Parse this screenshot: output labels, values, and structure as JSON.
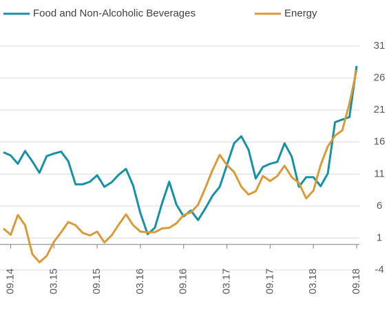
{
  "chart_data": {
    "type": "line",
    "categories": [
      null,
      "09.14",
      null,
      null,
      null,
      null,
      null,
      "03.15",
      null,
      null,
      null,
      null,
      null,
      "09.15",
      null,
      null,
      null,
      null,
      null,
      "03.16",
      null,
      null,
      null,
      null,
      null,
      "09.16",
      null,
      null,
      null,
      null,
      null,
      "03.17",
      null,
      null,
      null,
      null,
      null,
      "09.17",
      null,
      null,
      null,
      null,
      null,
      "03.18",
      null,
      null,
      null,
      null,
      null,
      "09.18"
    ],
    "series": [
      {
        "name": "Food and Non-Alcoholic Beverages",
        "color": "#1591a7",
        "values": [
          14.4,
          13.9,
          12.6,
          14.6,
          13,
          11.2,
          13.8,
          14.2,
          14.5,
          13,
          9.4,
          9.4,
          9.8,
          10.8,
          9,
          9.7,
          10.9,
          11.8,
          9.2,
          4.9,
          1.6,
          2.6,
          6.4,
          9.8,
          6.2,
          4.4,
          5.3,
          3.8,
          5.6,
          7.6,
          9,
          12.4,
          15.8,
          16.9,
          14.8,
          10.3,
          12.1,
          12.6,
          12.9,
          15.8,
          13.7,
          9,
          10.5,
          10.5,
          9.1,
          11.1,
          19.1,
          19.5,
          19.9,
          27.9
        ]
      },
      {
        "name": "Energy",
        "color": "#db9a35",
        "values": [
          2.5,
          1.5,
          4.6,
          3,
          -1.5,
          -2.8,
          -1.8,
          0.4,
          1.9,
          3.5,
          3,
          1.8,
          1.4,
          2,
          0.3,
          1.4,
          3.1,
          4.7,
          3,
          2,
          1.9,
          1.9,
          2.5,
          2.6,
          3.3,
          4.6,
          5,
          6.2,
          8.8,
          11.6,
          14,
          12.4,
          11.3,
          9,
          7.8,
          8.3,
          10.7,
          9.9,
          10.7,
          12.3,
          10.5,
          9.6,
          7.2,
          8.4,
          12.4,
          15.3,
          17,
          17.8,
          22,
          27.3
        ]
      }
    ],
    "ylim": [
      -4,
      31
    ],
    "yticks": [
      -4,
      1,
      6,
      11,
      16,
      21,
      26,
      31
    ],
    "grid": true
  }
}
